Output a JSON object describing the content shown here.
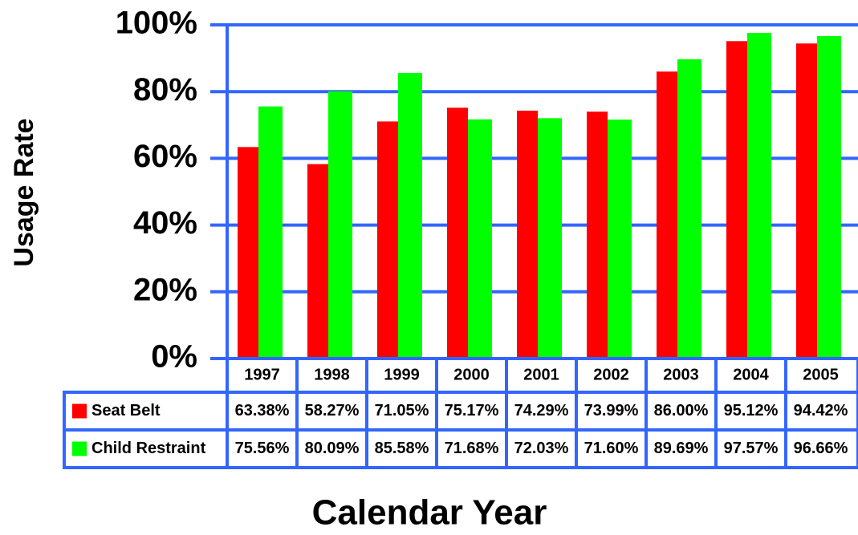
{
  "chart_data": {
    "type": "bar",
    "y_label": "Usage Rate",
    "x_label": "Calendar Year",
    "categories": [
      "1997",
      "1998",
      "1999",
      "2000",
      "2001",
      "2002",
      "2003",
      "2004",
      "2005"
    ],
    "series": [
      {
        "name": "Seat Belt",
        "color": "#ff0000",
        "values": [
          63.38,
          58.27,
          71.05,
          75.17,
          74.29,
          73.99,
          86.0,
          95.12,
          94.42
        ],
        "value_labels": [
          "63.38%",
          "58.27%",
          "71.05%",
          "75.17%",
          "74.29%",
          "73.99%",
          "86.00%",
          "95.12%",
          "94.42%"
        ]
      },
      {
        "name": "Child Restraint",
        "color": "#00ff00",
        "values": [
          75.56,
          80.09,
          85.58,
          71.68,
          72.03,
          71.6,
          89.69,
          97.57,
          96.66
        ],
        "value_labels": [
          "75.56%",
          "80.09%",
          "85.58%",
          "71.68%",
          "72.03%",
          "71.60%",
          "89.69%",
          "97.57%",
          "96.66%"
        ]
      }
    ],
    "ylim": [
      0,
      100
    ],
    "yticks": [
      {
        "value": 0,
        "label": "0%"
      },
      {
        "value": 20,
        "label": "20%"
      },
      {
        "value": 40,
        "label": "40%"
      },
      {
        "value": 60,
        "label": "60%"
      },
      {
        "value": 80,
        "label": "80%"
      },
      {
        "value": 100,
        "label": "100%"
      }
    ],
    "grid": true,
    "grid_color": "#3366ff"
  }
}
